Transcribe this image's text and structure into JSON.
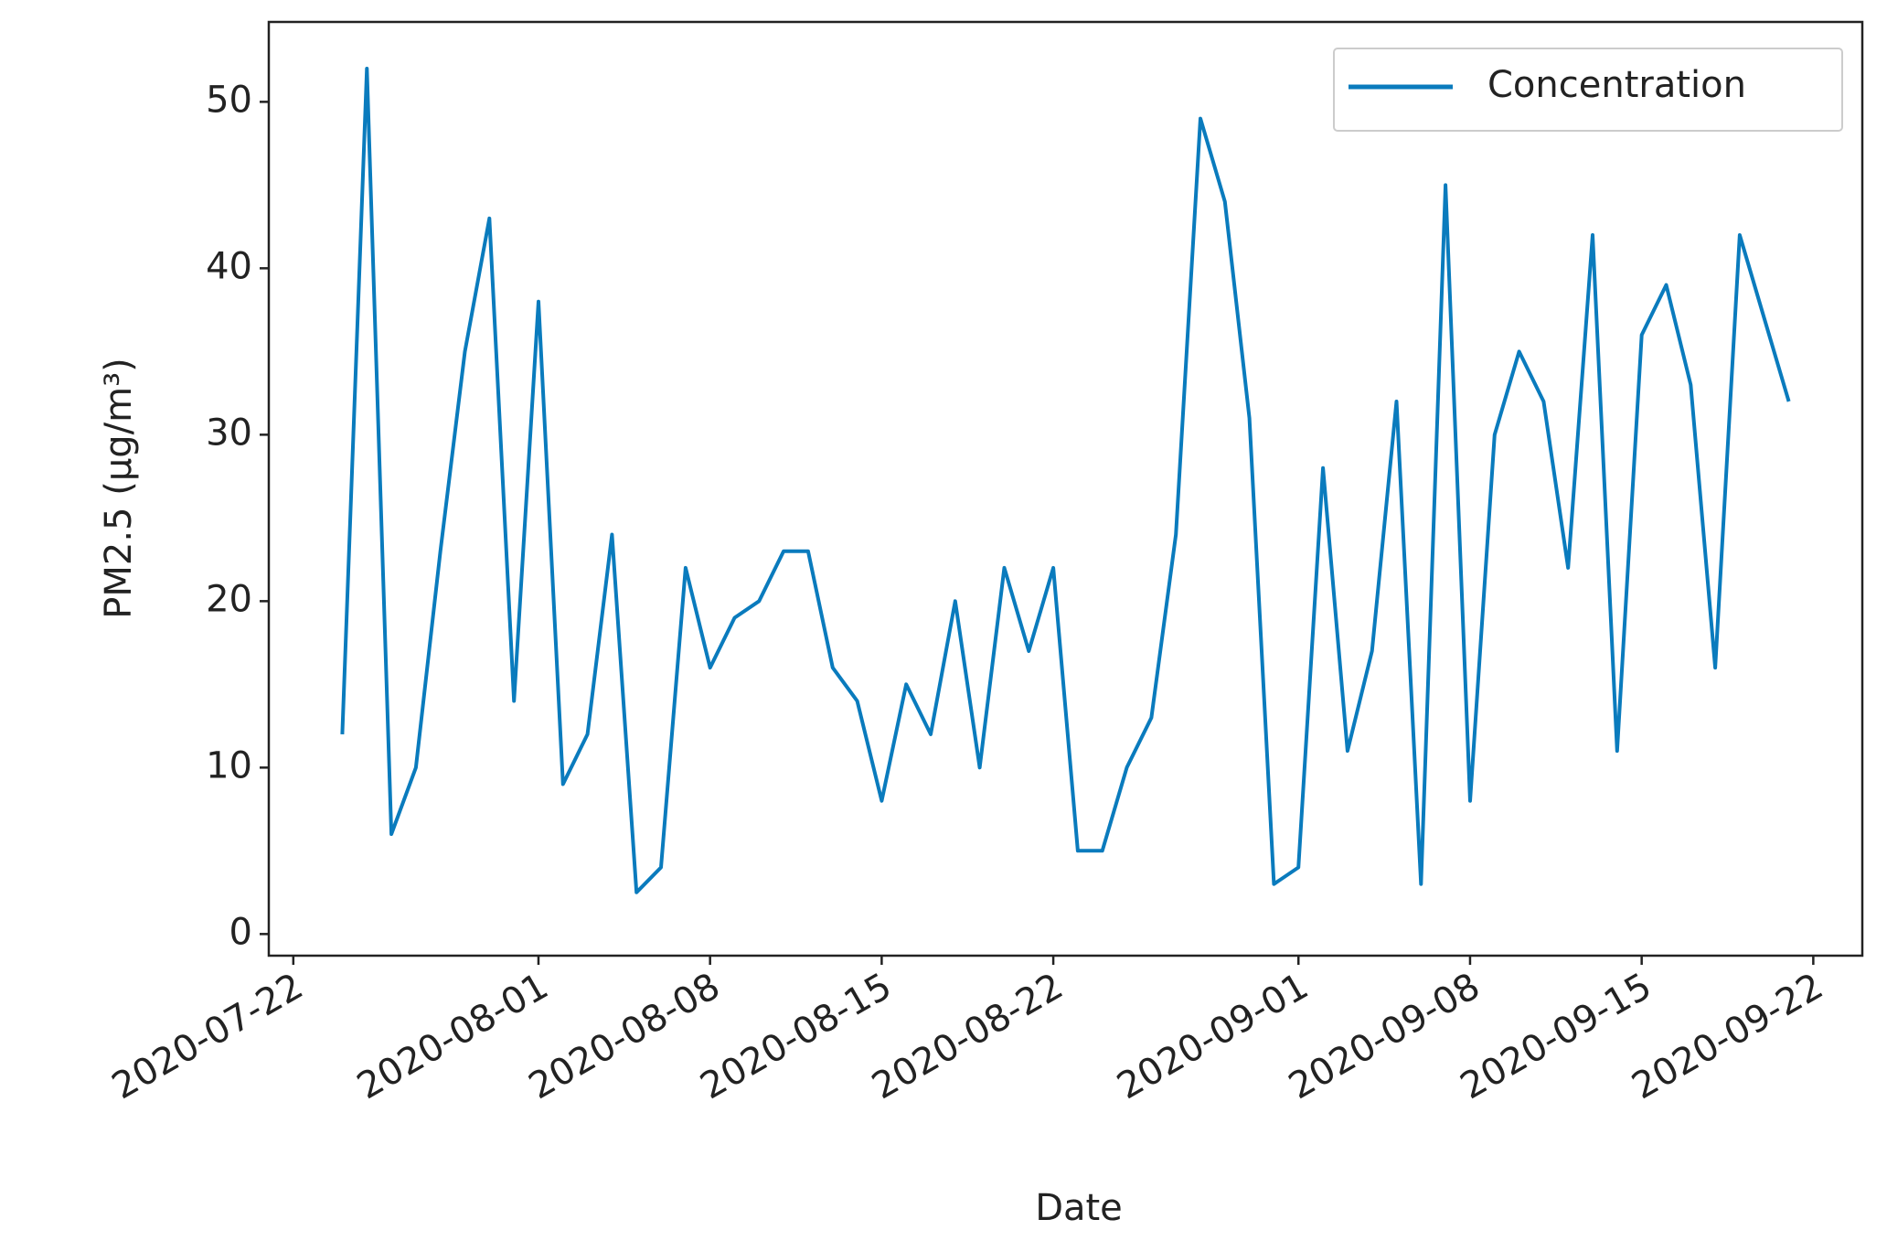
{
  "chart_data": {
    "type": "line",
    "x_label": "Date",
    "y_label": "PM2.5 (µg/m³)",
    "x": [
      "2020-07-24",
      "2020-07-25",
      "2020-07-26",
      "2020-07-27",
      "2020-07-28",
      "2020-07-29",
      "2020-07-30",
      "2020-07-31",
      "2020-08-01",
      "2020-08-02",
      "2020-08-03",
      "2020-08-04",
      "2020-08-05",
      "2020-08-06",
      "2020-08-07",
      "2020-08-08",
      "2020-08-09",
      "2020-08-10",
      "2020-08-11",
      "2020-08-12",
      "2020-08-13",
      "2020-08-14",
      "2020-08-15",
      "2020-08-16",
      "2020-08-17",
      "2020-08-18",
      "2020-08-19",
      "2020-08-20",
      "2020-08-21",
      "2020-08-22",
      "2020-08-23",
      "2020-08-24",
      "2020-08-25",
      "2020-08-26",
      "2020-08-27",
      "2020-08-28",
      "2020-08-29",
      "2020-08-30",
      "2020-08-31",
      "2020-09-01",
      "2020-09-02",
      "2020-09-03",
      "2020-09-04",
      "2020-09-05",
      "2020-09-06",
      "2020-09-07",
      "2020-09-08",
      "2020-09-09",
      "2020-09-10",
      "2020-09-11",
      "2020-09-12",
      "2020-09-13",
      "2020-09-14",
      "2020-09-15",
      "2020-09-16",
      "2020-09-17",
      "2020-09-18",
      "2020-09-19",
      "2020-09-20",
      "2020-09-21"
    ],
    "series": [
      {
        "name": "Concentration",
        "color": "#0a7bbd",
        "values": [
          12,
          52,
          6,
          10,
          23,
          35,
          43,
          14,
          38,
          9,
          12,
          24,
          2.5,
          4,
          22,
          16,
          19,
          20,
          23,
          23,
          16,
          14,
          8,
          15,
          12,
          20,
          10,
          22,
          17,
          22,
          5,
          5,
          10,
          13,
          24,
          49,
          44,
          31,
          3,
          4,
          28,
          11,
          17,
          32,
          3,
          45,
          8,
          30,
          35,
          32,
          22,
          42,
          11,
          36,
          39,
          33,
          16,
          42,
          37,
          32
        ]
      }
    ],
    "xlim": [
      "2020-07-21",
      "2020-09-24"
    ],
    "xticks": [
      "2020-07-22",
      "2020-08-01",
      "2020-08-08",
      "2020-08-15",
      "2020-08-22",
      "2020-09-01",
      "2020-09-08",
      "2020-09-15",
      "2020-09-22"
    ],
    "ylim": [
      -1.3,
      54.8
    ],
    "yticks": [
      0,
      10,
      20,
      30,
      40,
      50
    ],
    "legend": "upper right"
  }
}
